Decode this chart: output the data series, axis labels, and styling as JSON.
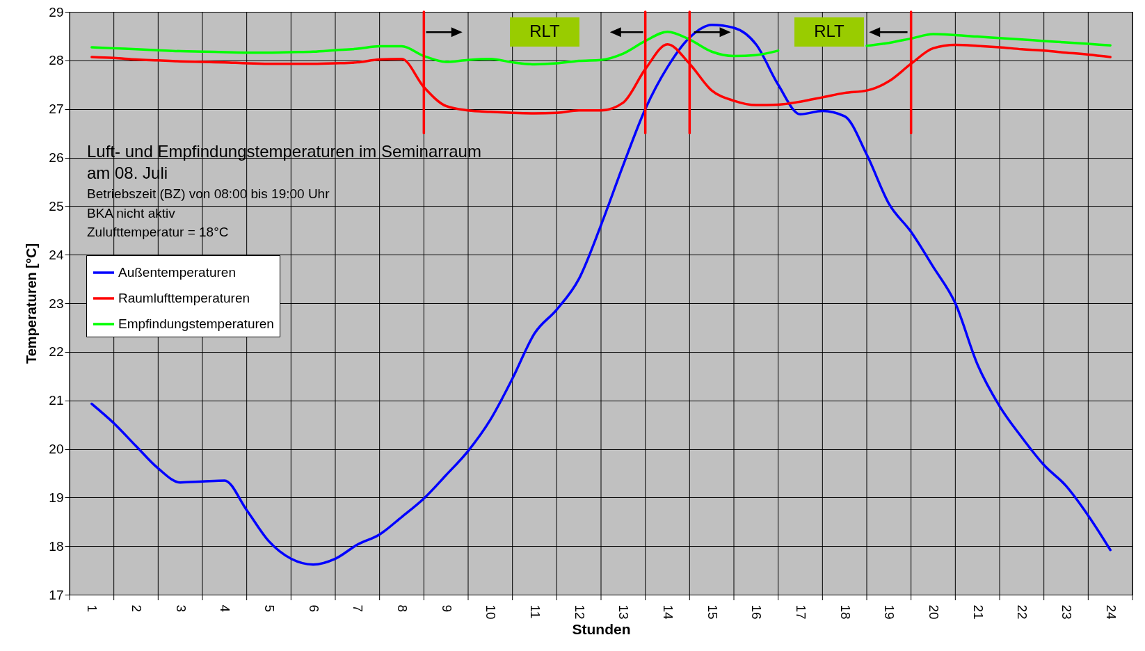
{
  "chart_data": {
    "type": "line",
    "xlabel": "Stunden",
    "ylabel": "Temperaturen [°C]",
    "x": [
      1,
      1.5,
      2,
      2.5,
      3,
      3.5,
      4,
      4.5,
      5,
      5.5,
      6,
      6.5,
      7,
      7.5,
      8,
      8.5,
      9,
      9.5,
      10,
      10.5,
      11,
      11.5,
      12,
      12.5,
      13,
      13.5,
      14,
      14.5,
      15,
      15.5,
      16,
      16.5,
      17,
      17.5,
      18,
      18.5,
      19,
      19.5,
      20,
      20.5,
      21,
      21.5,
      22,
      22.5,
      23,
      23.5,
      24
    ],
    "series": [
      {
        "name": "Außentemperaturen",
        "color": "#0000ff",
        "values": [
          20.93,
          20.53,
          20.06,
          19.6,
          19.31,
          19.33,
          19.35,
          18.74,
          18.1,
          17.74,
          17.62,
          17.74,
          18.03,
          18.24,
          18.6,
          18.98,
          19.46,
          19.96,
          20.6,
          21.45,
          22.38,
          22.87,
          23.5,
          24.61,
          25.84,
          27.0,
          27.86,
          28.47,
          28.73,
          28.67,
          28.33,
          27.5,
          26.89,
          26.96,
          26.85,
          26.06,
          25.05,
          24.47,
          23.75,
          23.0,
          21.74,
          20.88,
          20.24,
          19.67,
          19.24,
          18.63,
          17.92
        ]
      },
      {
        "name": "Raumlufttemperaturen",
        "color": "#ff0000",
        "values": [
          28.07,
          28.05,
          28.02,
          28.0,
          27.98,
          27.97,
          27.96,
          27.94,
          27.93,
          27.93,
          27.93,
          27.94,
          27.96,
          28.02,
          28.03,
          27.45,
          27.06,
          26.97,
          26.94,
          26.92,
          26.91,
          26.92,
          26.97,
          26.97,
          27.13,
          27.82,
          28.33,
          27.93,
          27.38,
          27.17,
          27.08,
          27.09,
          27.15,
          27.24,
          27.33,
          27.38,
          27.57,
          27.93,
          28.25,
          28.32,
          28.3,
          28.27,
          28.23,
          28.2,
          28.16,
          28.12,
          28.07
        ]
      },
      {
        "name": "Empfindungstemperaturen",
        "color": "#00ff00",
        "values": [
          28.27,
          28.25,
          28.23,
          28.21,
          28.19,
          28.18,
          28.17,
          28.16,
          28.16,
          28.17,
          28.18,
          28.21,
          28.24,
          28.29,
          28.29,
          28.09,
          27.97,
          28.01,
          28.03,
          27.96,
          27.92,
          27.94,
          27.99,
          28.01,
          28.14,
          28.4,
          28.59,
          28.43,
          28.18,
          28.09,
          28.11,
          28.2,
          null,
          null,
          null,
          28.3,
          28.36,
          28.45,
          28.54,
          28.52,
          28.49,
          28.46,
          28.43,
          28.4,
          28.37,
          28.34,
          28.31
        ]
      },
      {
        "type": "line",
        "color": "#ff0000",
        "x": [
          8.5,
          8.5
        ],
        "values": [
          26.5,
          29
        ]
      },
      {
        "type": "line",
        "color": "#ff0000",
        "x": [
          13.5,
          13.5
        ],
        "values": [
          26.5,
          29
        ]
      },
      {
        "type": "line",
        "color": "#ff0000",
        "x": [
          14.5,
          14.5
        ],
        "values": [
          26.5,
          29
        ]
      },
      {
        "type": "line",
        "color": "#ff0000",
        "x": [
          19.5,
          19.5
        ],
        "values": [
          26.5,
          29
        ]
      }
    ],
    "xlim": [
      0.5,
      24.5
    ],
    "xticks": [
      {
        "value": 0.5,
        "label": null
      },
      1,
      {
        "value": 1.5,
        "label": null
      },
      2,
      {
        "value": 2.5,
        "label": null
      },
      3,
      {
        "value": 3.5,
        "label": null
      },
      4,
      {
        "value": 4.5,
        "label": null
      },
      5,
      {
        "value": 5.5,
        "label": null
      },
      6,
      {
        "value": 6.5,
        "label": null
      },
      7,
      {
        "value": 7.5,
        "label": null
      },
      8,
      {
        "value": 8.5,
        "label": null
      },
      9,
      {
        "value": 9.5,
        "label": null
      },
      10,
      {
        "value": 10.5,
        "label": null
      },
      11,
      {
        "value": 11.5,
        "label": null
      },
      12,
      {
        "value": 12.5,
        "label": null
      },
      13,
      {
        "value": 13.5,
        "label": null
      },
      14,
      {
        "value": 14.5,
        "label": null
      },
      15,
      {
        "value": 15.5,
        "label": null
      },
      16,
      {
        "value": 16.5,
        "label": null
      },
      17,
      {
        "value": 17.5,
        "label": null
      },
      18,
      {
        "value": 18.5,
        "label": null
      },
      19,
      {
        "value": 19.5,
        "label": null
      },
      20,
      {
        "value": 20.5,
        "label": null
      },
      21,
      {
        "value": 21.5,
        "label": null
      },
      22,
      {
        "value": 22.5,
        "label": null
      },
      23,
      {
        "value": 23.5,
        "label": null
      },
      24,
      {
        "value": 24.5,
        "label": null
      }
    ],
    "ylim": [
      17,
      29
    ],
    "yticks": [
      17,
      18,
      19,
      20,
      21,
      22,
      23,
      24,
      25,
      26,
      27,
      28,
      29
    ],
    "grid": true,
    "legend": "top left",
    "line_style": "solid",
    "annotations": [
      "Luft- und Empfindungstemperaturen im Seminarraum",
      "am 08. Juli",
      "Betriebszeit (BZ) von 08:00 bis 19:00 Uhr",
      "BKA nicht aktiv",
      "Zulufttemperatur = 18°C",
      "RLT",
      "RLT"
    ]
  }
}
